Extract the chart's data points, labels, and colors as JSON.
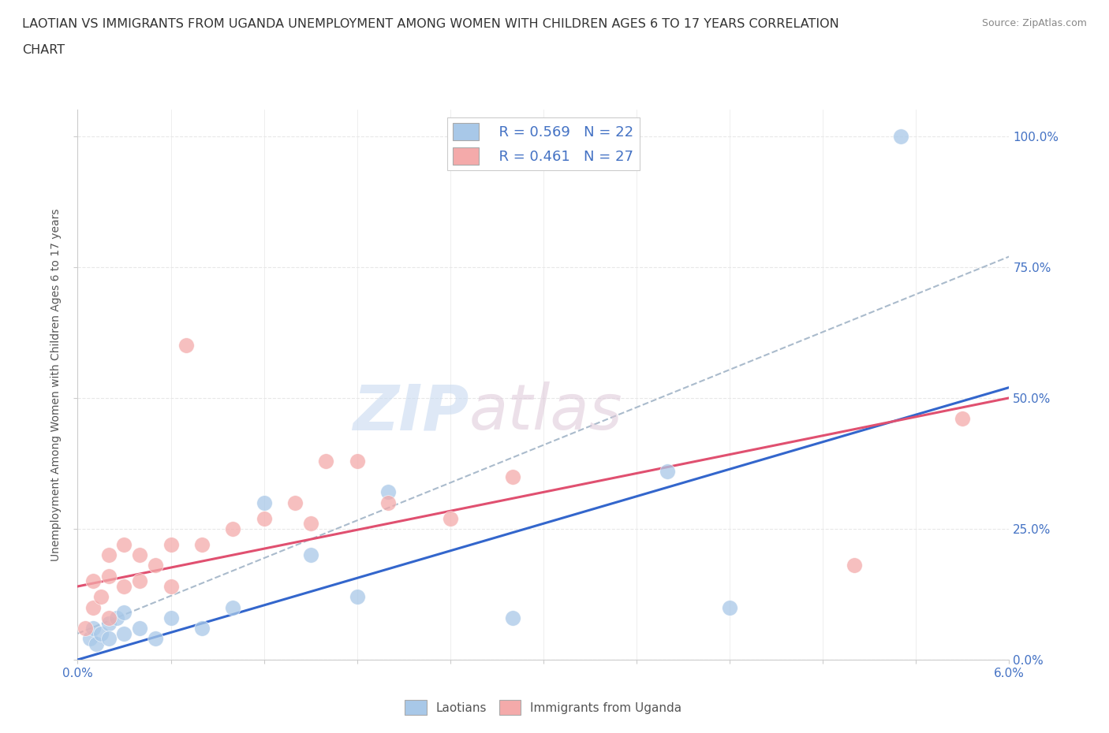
{
  "title_line1": "LAOTIAN VS IMMIGRANTS FROM UGANDA UNEMPLOYMENT AMONG WOMEN WITH CHILDREN AGES 6 TO 17 YEARS CORRELATION",
  "title_line2": "CHART",
  "source": "Source: ZipAtlas.com",
  "ylabel": "Unemployment Among Women with Children Ages 6 to 17 years",
  "xlim": [
    0.0,
    0.06
  ],
  "ylim": [
    0.0,
    1.05
  ],
  "yticks": [
    0.0,
    0.25,
    0.5,
    0.75,
    1.0
  ],
  "ytick_labels": [
    "0.0%",
    "25.0%",
    "50.0%",
    "75.0%",
    "100.0%"
  ],
  "xtick_positions": [
    0.0,
    0.006,
    0.012,
    0.018,
    0.024,
    0.03,
    0.036,
    0.042,
    0.048,
    0.054,
    0.06
  ],
  "xtick_labels": [
    "0.0%",
    "",
    "",
    "",
    "",
    "",
    "",
    "",
    "",
    "",
    "6.0%"
  ],
  "blue_scatter_color": "#a8c8e8",
  "pink_scatter_color": "#f4aaaa",
  "blue_line_color": "#3366cc",
  "pink_line_color": "#e05070",
  "dashed_line_color": "#aabbcc",
  "legend_text_color": "#4472C4",
  "axis_label_color": "#4472C4",
  "grid_color": "#e8e8e8",
  "background_color": "#ffffff",
  "watermark_zip_color": "#c8daf0",
  "watermark_atlas_color": "#ddc8d8",
  "blue_scatter_x": [
    0.0008,
    0.001,
    0.0012,
    0.0015,
    0.002,
    0.002,
    0.0025,
    0.003,
    0.003,
    0.004,
    0.005,
    0.006,
    0.008,
    0.01,
    0.012,
    0.015,
    0.018,
    0.02,
    0.028,
    0.038,
    0.042,
    0.053
  ],
  "blue_scatter_y": [
    0.04,
    0.06,
    0.03,
    0.05,
    0.07,
    0.04,
    0.08,
    0.05,
    0.09,
    0.06,
    0.04,
    0.08,
    0.06,
    0.1,
    0.3,
    0.2,
    0.12,
    0.32,
    0.08,
    0.36,
    0.1,
    1.0
  ],
  "pink_scatter_x": [
    0.0005,
    0.001,
    0.001,
    0.0015,
    0.002,
    0.002,
    0.002,
    0.003,
    0.003,
    0.004,
    0.004,
    0.005,
    0.006,
    0.006,
    0.007,
    0.008,
    0.01,
    0.012,
    0.014,
    0.015,
    0.016,
    0.018,
    0.02,
    0.024,
    0.028,
    0.05,
    0.057
  ],
  "pink_scatter_y": [
    0.06,
    0.1,
    0.15,
    0.12,
    0.08,
    0.16,
    0.2,
    0.14,
    0.22,
    0.15,
    0.2,
    0.18,
    0.22,
    0.14,
    0.6,
    0.22,
    0.25,
    0.27,
    0.3,
    0.26,
    0.38,
    0.38,
    0.3,
    0.27,
    0.35,
    0.18,
    0.46
  ],
  "blue_line_x0": 0.0,
  "blue_line_y0": 0.0,
  "blue_line_x1": 0.06,
  "blue_line_y1": 0.52,
  "pink_line_x0": 0.0,
  "pink_line_y0": 0.14,
  "pink_line_x1": 0.06,
  "pink_line_y1": 0.5,
  "dash_line_x0": 0.0,
  "dash_line_y0": 0.05,
  "dash_line_x1": 0.06,
  "dash_line_y1": 0.77
}
